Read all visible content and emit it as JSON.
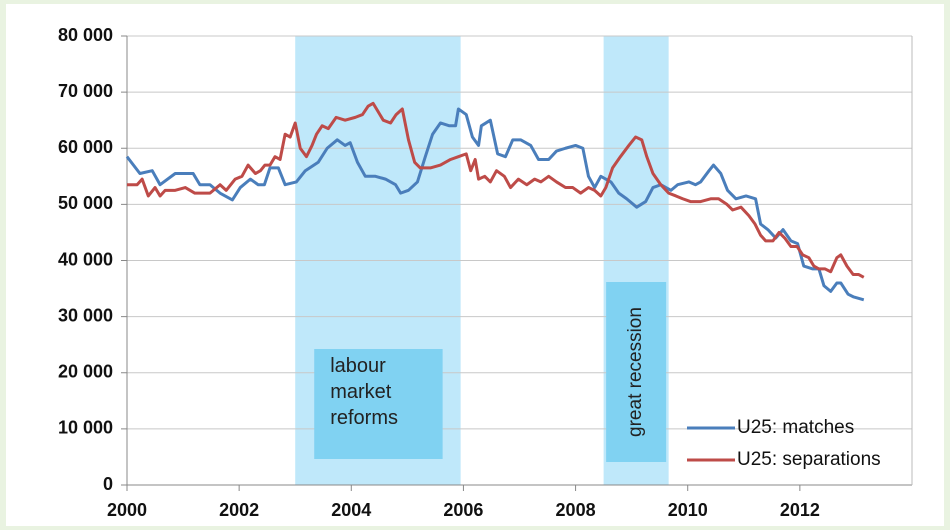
{
  "chart_data": {
    "type": "line",
    "xlim": [
      2000,
      2014
    ],
    "xticks": [
      2000,
      2002,
      2004,
      2006,
      2008,
      2010,
      2012
    ],
    "ylim": [
      0,
      80000
    ],
    "yticks": [
      0,
      {
        "value": 10000,
        "label": "10 000"
      },
      {
        "value": 20000,
        "label": "20 000"
      },
      {
        "value": 30000,
        "label": "30 000"
      },
      {
        "value": 40000,
        "label": "40 000"
      },
      {
        "value": 50000,
        "label": "50 000"
      },
      {
        "value": 60000,
        "label": "60 000"
      },
      {
        "value": 70000,
        "label": "70 000"
      },
      {
        "value": 80000,
        "label": "80 000"
      }
    ],
    "grid": true,
    "legend": "lower right",
    "shaded_periods": [
      {
        "label": "labour market reforms",
        "xlim": [
          2003.0,
          2005.95
        ],
        "color": "#bfe8fa",
        "label_color": "#80d2f2"
      },
      {
        "label": "great recession",
        "xlim": [
          2008.5,
          2009.66
        ],
        "color": "#bfe8fa",
        "label_color": "#80d2f2"
      }
    ],
    "series": [
      {
        "name": "U25: matches",
        "color": "#4a7ebb",
        "x": [
          2000.0,
          2000.23,
          2000.45,
          2000.59,
          2000.86,
          2001.04,
          2001.18,
          2001.3,
          2001.48,
          2001.66,
          2001.88,
          2002.02,
          2002.2,
          2002.34,
          2002.45,
          2002.55,
          2002.7,
          2002.82,
          2003.02,
          2003.18,
          2003.41,
          2003.57,
          2003.75,
          2003.89,
          2003.98,
          2004.11,
          2004.25,
          2004.43,
          2004.61,
          2004.79,
          2004.88,
          2005.02,
          2005.18,
          2005.32,
          2005.45,
          2005.59,
          2005.75,
          2005.86,
          2005.91,
          2006.05,
          2006.16,
          2006.27,
          2006.32,
          2006.48,
          2006.61,
          2006.75,
          2006.88,
          2007.02,
          2007.2,
          2007.34,
          2007.52,
          2007.66,
          2007.82,
          2008.0,
          2008.13,
          2008.23,
          2008.34,
          2008.45,
          2008.63,
          2008.77,
          2008.91,
          2009.09,
          2009.25,
          2009.38,
          2009.52,
          2009.7,
          2009.82,
          2010.02,
          2010.14,
          2010.23,
          2010.38,
          2010.46,
          2010.59,
          2010.71,
          2010.86,
          2011.04,
          2011.21,
          2011.3,
          2011.43,
          2011.57,
          2011.7,
          2011.84,
          2011.96,
          2012.07,
          2012.23,
          2012.34,
          2012.43,
          2012.55,
          2012.66,
          2012.73,
          2012.86,
          2012.96,
          2013.14
        ],
        "values": [
          58500,
          55500,
          56000,
          53500,
          55500,
          55500,
          55500,
          53500,
          53500,
          52000,
          50800,
          53000,
          54500,
          53500,
          53500,
          56500,
          56500,
          53500,
          54000,
          56000,
          57500,
          60000,
          61500,
          60500,
          61000,
          57500,
          55000,
          55000,
          54500,
          53500,
          52000,
          52500,
          54000,
          58500,
          62500,
          64500,
          64000,
          64000,
          67000,
          66000,
          62000,
          60500,
          64000,
          65000,
          59000,
          58500,
          61500,
          61500,
          60500,
          58000,
          58000,
          59500,
          60000,
          60500,
          60000,
          55000,
          53000,
          55000,
          54000,
          52000,
          51000,
          49500,
          50500,
          53000,
          53500,
          52500,
          53500,
          54000,
          53500,
          54000,
          56000,
          57000,
          55500,
          52500,
          51000,
          51500,
          51000,
          46500,
          45500,
          44000,
          45500,
          43500,
          43000,
          39000,
          38500,
          38500,
          35500,
          34500,
          36000,
          36000,
          34000,
          33500,
          33000
        ]
      },
      {
        "name": "U25: separations",
        "color": "#be4b48",
        "x": [
          2000.0,
          2000.18,
          2000.27,
          2000.38,
          2000.5,
          2000.59,
          2000.68,
          2000.86,
          2001.04,
          2001.21,
          2001.48,
          2001.66,
          2001.77,
          2001.93,
          2002.05,
          2002.16,
          2002.29,
          2002.38,
          2002.46,
          2002.55,
          2002.64,
          2002.73,
          2002.82,
          2002.91,
          2003.0,
          2003.09,
          2003.2,
          2003.3,
          2003.38,
          2003.48,
          2003.59,
          2003.73,
          2003.89,
          2004.07,
          2004.2,
          2004.3,
          2004.39,
          2004.48,
          2004.57,
          2004.7,
          2004.8,
          2004.91,
          2005.02,
          2005.13,
          2005.23,
          2005.41,
          2005.59,
          2005.77,
          2005.91,
          2006.05,
          2006.13,
          2006.21,
          2006.27,
          2006.38,
          2006.48,
          2006.59,
          2006.73,
          2006.84,
          2006.98,
          2007.13,
          2007.27,
          2007.38,
          2007.52,
          2007.66,
          2007.82,
          2007.95,
          2008.09,
          2008.23,
          2008.34,
          2008.45,
          2008.54,
          2008.66,
          2008.8,
          2008.95,
          2009.07,
          2009.18,
          2009.27,
          2009.38,
          2009.52,
          2009.66,
          2009.79,
          2009.91,
          2010.05,
          2010.23,
          2010.41,
          2010.55,
          2010.7,
          2010.8,
          2010.95,
          2011.09,
          2011.2,
          2011.3,
          2011.39,
          2011.52,
          2011.63,
          2011.73,
          2011.84,
          2011.95,
          2012.05,
          2012.16,
          2012.25,
          2012.34,
          2012.45,
          2012.55,
          2012.66,
          2012.73,
          2012.84,
          2012.95,
          2013.05,
          2013.14
        ],
        "values": [
          53500,
          53500,
          54500,
          51500,
          53000,
          51500,
          52500,
          52500,
          53000,
          52000,
          52000,
          53500,
          52500,
          54500,
          55000,
          57000,
          55500,
          56000,
          57000,
          57000,
          58500,
          58000,
          62500,
          62000,
          64500,
          60000,
          58500,
          60500,
          62500,
          64000,
          63500,
          65500,
          65000,
          65500,
          66000,
          67500,
          68000,
          66500,
          65000,
          64500,
          66000,
          67000,
          61500,
          57500,
          56500,
          56500,
          57000,
          58000,
          58500,
          59000,
          56000,
          58000,
          54500,
          55000,
          54000,
          56000,
          55000,
          53000,
          54500,
          53500,
          54500,
          54000,
          55000,
          54000,
          53000,
          53000,
          52000,
          53000,
          52500,
          51500,
          53000,
          56500,
          58500,
          60500,
          62000,
          61500,
          58500,
          55500,
          53500,
          52000,
          51500,
          51000,
          50500,
          50500,
          51000,
          51000,
          50000,
          49000,
          49500,
          48000,
          46500,
          44500,
          43500,
          43500,
          45000,
          44000,
          42500,
          42500,
          41000,
          40500,
          39000,
          38500,
          38500,
          38000,
          40500,
          41000,
          39000,
          37500,
          37500,
          37000
        ]
      }
    ]
  }
}
